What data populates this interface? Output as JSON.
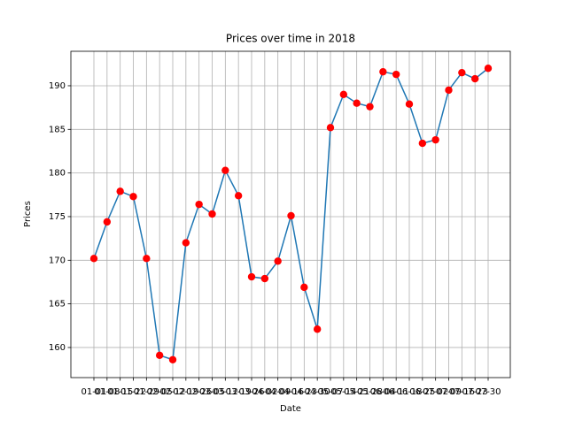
{
  "chart_data": {
    "type": "line",
    "title": "Prices over time in 2018",
    "x_label": "Date",
    "y_label": "Prices",
    "categories": [
      "01-01",
      "01-08",
      "01-15",
      "01-22",
      "01-29",
      "02-05",
      "02-12",
      "02-19",
      "02-26",
      "03-05",
      "03-12",
      "03-19",
      "03-26",
      "04-02",
      "04-09",
      "04-16",
      "04-23",
      "04-30",
      "05-07",
      "05-14",
      "05-21",
      "05-28",
      "06-04",
      "06-11",
      "06-18",
      "06-25",
      "07-02",
      "07-09",
      "07-16",
      "07-23",
      "07-30"
    ],
    "series": [
      {
        "name": "Prices",
        "color": "#1f77b4",
        "marker_color": "#ff0000",
        "values": [
          170.2,
          174.4,
          177.9,
          177.3,
          170.2,
          159.1,
          158.6,
          172.0,
          176.4,
          175.3,
          180.3,
          177.4,
          168.1,
          167.9,
          169.9,
          175.1,
          166.9,
          162.1,
          185.2,
          189.0,
          188.0,
          187.6,
          191.6,
          191.3,
          187.9,
          183.4,
          183.8,
          189.5,
          191.5,
          190.8,
          192.0
        ]
      }
    ],
    "ylim": [
      156.55,
      193.95
    ],
    "yticks": [
      160,
      165,
      170,
      175,
      180,
      185,
      190
    ],
    "grid": true
  }
}
